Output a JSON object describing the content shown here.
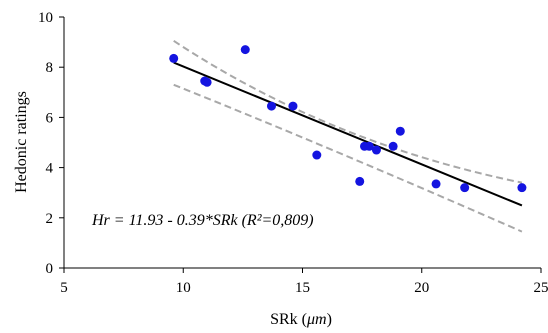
{
  "chart_data": {
    "type": "scatter",
    "xlabel": "SRk",
    "xlabel_unit": "μm",
    "ylabel": "Hedonic  ratings",
    "xlim": [
      5,
      25
    ],
    "ylim": [
      0,
      10
    ],
    "xticks": [
      5,
      10,
      15,
      20,
      25
    ],
    "yticks": [
      0,
      2,
      4,
      6,
      8,
      10
    ],
    "grid": false,
    "points": [
      {
        "x": 9.6,
        "y": 8.35
      },
      {
        "x": 10.9,
        "y": 7.45
      },
      {
        "x": 11.0,
        "y": 7.4
      },
      {
        "x": 12.6,
        "y": 8.7
      },
      {
        "x": 13.7,
        "y": 6.45
      },
      {
        "x": 14.6,
        "y": 6.45
      },
      {
        "x": 15.6,
        "y": 4.5
      },
      {
        "x": 17.4,
        "y": 3.45
      },
      {
        "x": 17.6,
        "y": 4.85
      },
      {
        "x": 17.8,
        "y": 4.85
      },
      {
        "x": 18.1,
        "y": 4.7
      },
      {
        "x": 18.8,
        "y": 4.85
      },
      {
        "x": 19.1,
        "y": 5.45
      },
      {
        "x": 20.6,
        "y": 3.35
      },
      {
        "x": 21.8,
        "y": 3.2
      },
      {
        "x": 24.2,
        "y": 3.2
      }
    ],
    "fit": {
      "intercept": 11.93,
      "slope": -0.39,
      "x_range": [
        9.6,
        24.2
      ]
    },
    "confidence_band": {
      "upper": [
        {
          "x": 9.6,
          "y": 9.05
        },
        {
          "x": 16.5,
          "y": 5.6
        },
        {
          "x": 24.2,
          "y": 3.4
        }
      ],
      "lower": [
        {
          "x": 9.6,
          "y": 7.3
        },
        {
          "x": 16.5,
          "y": 4.6
        },
        {
          "x": 24.2,
          "y": 1.45
        }
      ]
    },
    "annotation": "Hr = 11.93 - 0.39*SRk (R²=0,809)",
    "colors": {
      "points": "#1414e0",
      "fit": "#000000",
      "band": "#a8a8a8",
      "axes": "#000000"
    }
  }
}
